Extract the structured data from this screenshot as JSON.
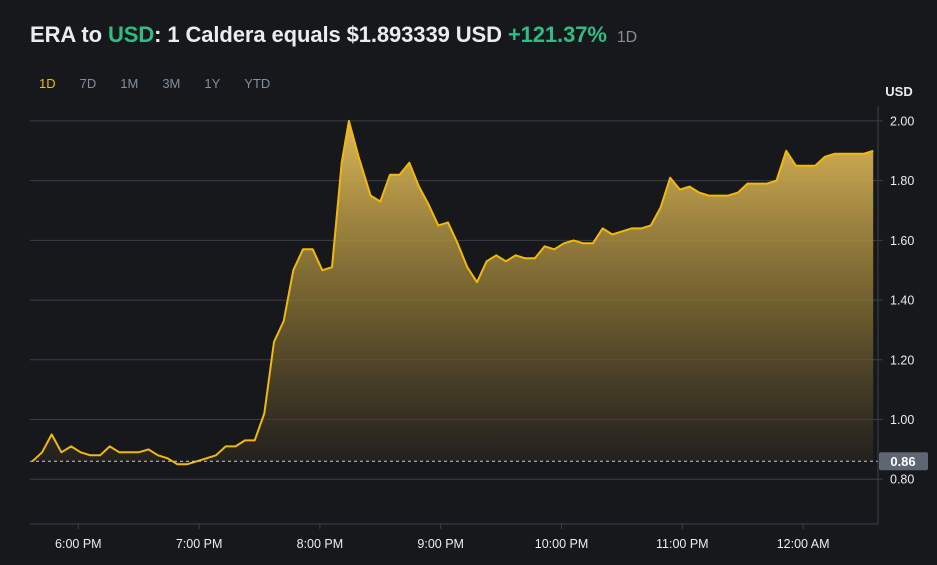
{
  "header": {
    "base": "ERA",
    "to_word": "to",
    "quote": "USD",
    "sentence": ": 1 Caldera equals $1.893339 USD",
    "change": "+121.37%",
    "period": "1D"
  },
  "tabs": [
    {
      "label": "1D",
      "active": true
    },
    {
      "label": "7D",
      "active": false
    },
    {
      "label": "1M",
      "active": false
    },
    {
      "label": "3M",
      "active": false
    },
    {
      "label": "1Y",
      "active": false
    },
    {
      "label": "YTD",
      "active": false
    }
  ],
  "colors": {
    "line": "#f0b90b",
    "grid": "#3b3f46",
    "axis_text": "#eaecef",
    "background": "#17181c",
    "base_label_bg": "#5e6673"
  },
  "chart_data": {
    "type": "area",
    "ylabel": "USD",
    "ylim": [
      0.65,
      2.05
    ],
    "yticks": [
      "2.00",
      "1.80",
      "1.60",
      "1.40",
      "1.20",
      "1.00",
      "0.80"
    ],
    "ytick_values": [
      2.0,
      1.8,
      1.6,
      1.4,
      1.2,
      1.0,
      0.8
    ],
    "xlim": [
      5.6,
      12.62
    ],
    "xticks": [
      "6:00 PM",
      "7:00 PM",
      "8:00 PM",
      "9:00 PM",
      "10:00 PM",
      "11:00 PM",
      "12:00 AM"
    ],
    "xtick_values": [
      6,
      7,
      8,
      9,
      10,
      11,
      12
    ],
    "base_value": 0.86,
    "base_label": "0.86",
    "series": [
      {
        "x": [
          5.62,
          5.7,
          5.78,
          5.86,
          5.94,
          6.02,
          6.1,
          6.18,
          6.26,
          6.34,
          6.42,
          6.5,
          6.58,
          6.66,
          6.74,
          6.82,
          6.9,
          6.98,
          7.06,
          7.14,
          7.22,
          7.3,
          7.38,
          7.46,
          7.54,
          7.62,
          7.7,
          7.78,
          7.86,
          7.94,
          8.02,
          8.1,
          8.18,
          8.24,
          8.32,
          8.42,
          8.5,
          8.58,
          8.66,
          8.74,
          8.82,
          8.9,
          8.98,
          9.06,
          9.14,
          9.22,
          9.3,
          9.38,
          9.46,
          9.54,
          9.62,
          9.7,
          9.78,
          9.86,
          9.94,
          10.02,
          10.1,
          10.18,
          10.26,
          10.34,
          10.42,
          10.5,
          10.58,
          10.66,
          10.74,
          10.82,
          10.9,
          10.98,
          11.06,
          11.14,
          11.22,
          11.3,
          11.38,
          11.46,
          11.54,
          11.62,
          11.7,
          11.78,
          11.86,
          11.94,
          12.02,
          12.1,
          12.18,
          12.26,
          12.34,
          12.42,
          12.5,
          12.58
        ],
        "y": [
          0.86,
          0.89,
          0.95,
          0.89,
          0.91,
          0.89,
          0.88,
          0.88,
          0.91,
          0.89,
          0.89,
          0.89,
          0.9,
          0.88,
          0.87,
          0.85,
          0.85,
          0.86,
          0.87,
          0.88,
          0.91,
          0.91,
          0.93,
          0.93,
          1.02,
          1.26,
          1.33,
          1.5,
          1.57,
          1.57,
          1.5,
          1.51,
          1.86,
          2.0,
          1.88,
          1.75,
          1.73,
          1.82,
          1.82,
          1.86,
          1.78,
          1.72,
          1.65,
          1.66,
          1.59,
          1.51,
          1.46,
          1.53,
          1.55,
          1.53,
          1.55,
          1.54,
          1.54,
          1.58,
          1.57,
          1.59,
          1.6,
          1.59,
          1.59,
          1.64,
          1.62,
          1.63,
          1.64,
          1.64,
          1.65,
          1.71,
          1.81,
          1.77,
          1.78,
          1.76,
          1.75,
          1.75,
          1.75,
          1.76,
          1.79,
          1.79,
          1.79,
          1.8,
          1.9,
          1.85,
          1.85,
          1.85,
          1.88,
          1.89,
          1.89,
          1.89,
          1.89,
          1.9
        ]
      }
    ]
  }
}
